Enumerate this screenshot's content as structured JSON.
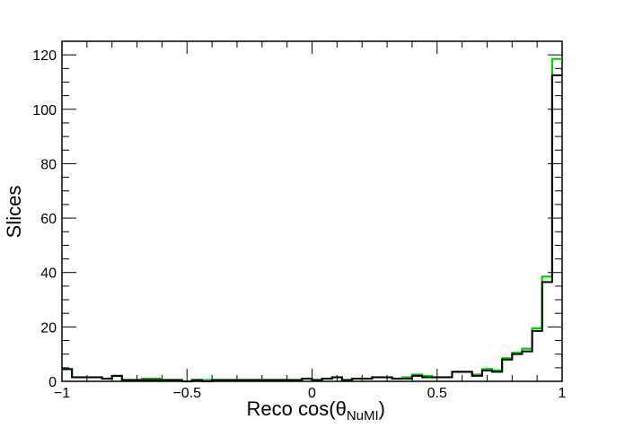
{
  "chart_data": {
    "type": "histogram",
    "xlabel": {
      "prefix": "Reco cos(θ",
      "subscript": "NuMI",
      "suffix": ")"
    },
    "ylabel": "Slices",
    "xlim": [
      -1,
      1
    ],
    "ylim": [
      0,
      125
    ],
    "x_ticks": [
      {
        "value": -1,
        "label": "−1"
      },
      {
        "value": -0.5,
        "label": "−0.5"
      },
      {
        "value": 0,
        "label": "0"
      },
      {
        "value": 0.5,
        "label": "0.5"
      },
      {
        "value": 1,
        "label": "1"
      }
    ],
    "y_ticks": [
      {
        "value": 0,
        "label": "0"
      },
      {
        "value": 20,
        "label": "20"
      },
      {
        "value": 40,
        "label": "40"
      },
      {
        "value": 60,
        "label": "60"
      },
      {
        "value": 80,
        "label": "80"
      },
      {
        "value": 100,
        "label": "100"
      },
      {
        "value": 120,
        "label": "120"
      }
    ],
    "bin_edges": [
      -1,
      -0.96,
      -0.92,
      -0.88,
      -0.84,
      -0.8,
      -0.76,
      -0.72,
      -0.68,
      -0.64,
      -0.6,
      -0.56,
      -0.52,
      -0.48,
      -0.44,
      -0.4,
      -0.36,
      -0.32,
      -0.28,
      -0.24,
      -0.2,
      -0.16,
      -0.12,
      -0.08,
      -0.04,
      0,
      0.04,
      0.08,
      0.12,
      0.16,
      0.2,
      0.24,
      0.28,
      0.32,
      0.36,
      0.4,
      0.44,
      0.48,
      0.52,
      0.56,
      0.6,
      0.64,
      0.68,
      0.72,
      0.76,
      0.8,
      0.84,
      0.88,
      0.92,
      0.96,
      1
    ],
    "series": [
      {
        "color": "#00cc00",
        "values": [
          4.5,
          1.5,
          1.5,
          1.5,
          1,
          2,
          0.5,
          0.5,
          1,
          1,
          0.5,
          0.5,
          0,
          0.5,
          0.5,
          0.5,
          0.5,
          0.5,
          0.5,
          0.5,
          0.5,
          0.5,
          0.5,
          0.5,
          1,
          0.5,
          1,
          1.5,
          0.5,
          1,
          1,
          1.5,
          1.5,
          1,
          1.5,
          2.5,
          2,
          1.5,
          1.5,
          3.5,
          3.5,
          2.5,
          4.5,
          4,
          8.5,
          10.5,
          12,
          19.5,
          38.5,
          118.5
        ]
      },
      {
        "color": "#000000",
        "values": [
          4.5,
          1.5,
          1.5,
          1.5,
          1,
          2,
          0.5,
          0.5,
          0.5,
          0.5,
          0.5,
          0.5,
          0,
          0.5,
          0,
          0.5,
          0.5,
          0.5,
          0.5,
          0.5,
          0.5,
          0.5,
          0.5,
          0.5,
          1,
          0.5,
          1,
          1.5,
          0.5,
          1,
          1,
          1.5,
          1.5,
          1,
          1,
          2,
          1.5,
          1.5,
          1.5,
          3.5,
          3.5,
          2,
          4,
          3.5,
          8,
          10,
          11,
          18.5,
          36.5,
          112.5
        ]
      }
    ],
    "grid": false,
    "legend": "none"
  }
}
